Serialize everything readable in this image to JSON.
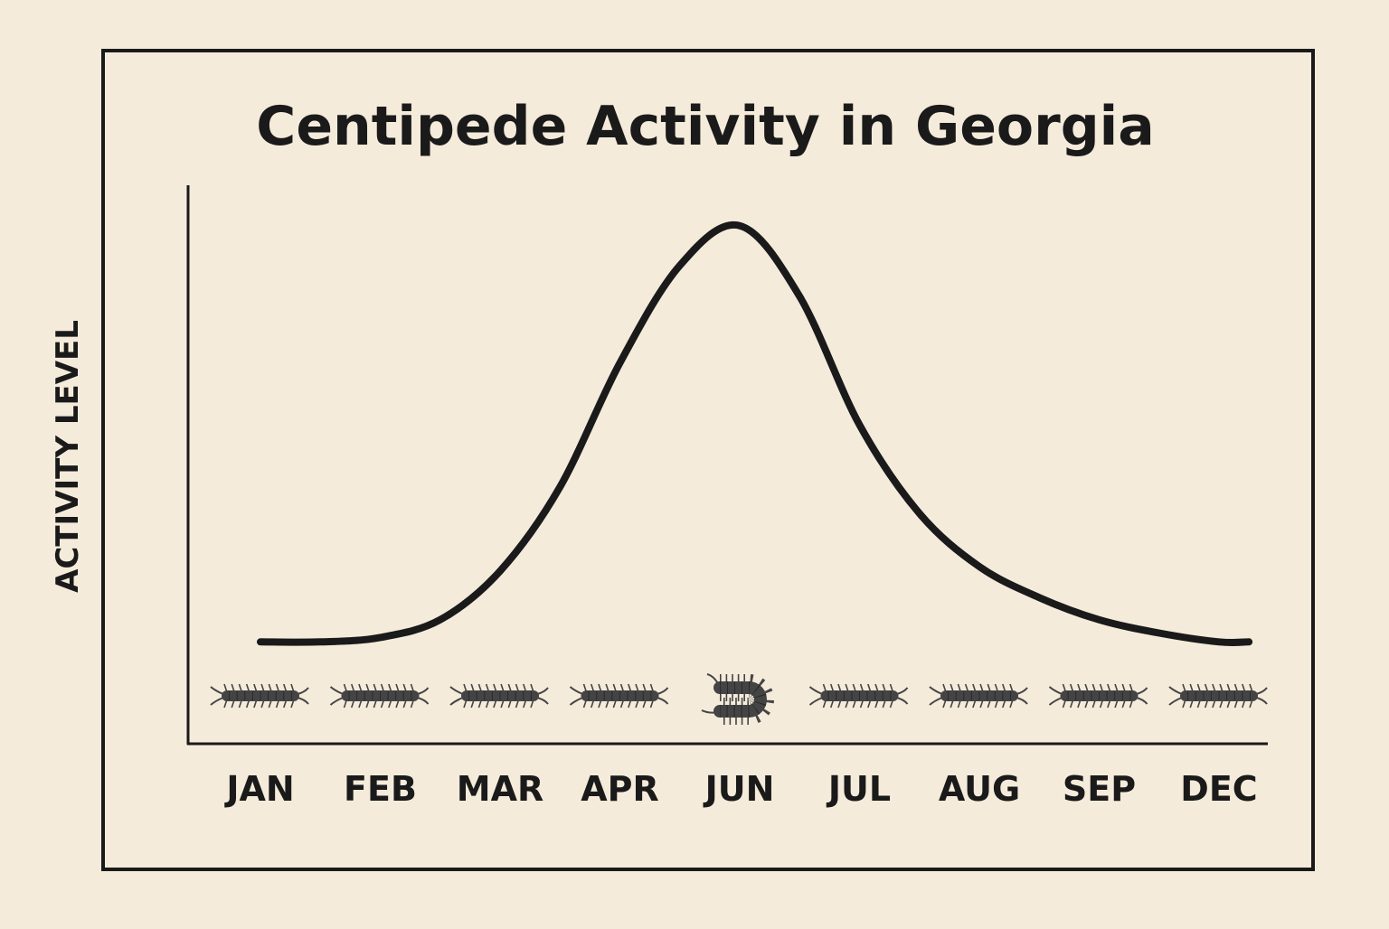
{
  "chart_data": {
    "type": "line",
    "title": "Centipede Activity in Georgia",
    "xlabel": "",
    "ylabel": "ACTIVITY LEVEL",
    "categories": [
      "JAN",
      "FEB",
      "MAR",
      "APR",
      "JUN",
      "JUL",
      "AUG",
      "SEP",
      "DEC"
    ],
    "curve": {
      "x": [
        0,
        0.5,
        1,
        1.5,
        2,
        2.5,
        3,
        3.5,
        4,
        4.5,
        5,
        5.5,
        6,
        6.5,
        7,
        7.5,
        8,
        8.25
      ],
      "y": [
        3,
        3,
        4,
        8,
        19,
        38,
        66,
        88,
        97,
        81,
        52,
        32,
        20,
        13,
        8,
        5,
        3,
        3
      ]
    },
    "ylim": [
      0,
      110
    ],
    "grid": false,
    "legend": "none",
    "icons": [
      "centipede-icon",
      "centipede-icon",
      "centipede-icon",
      "centipede-icon",
      "centipede-curled-icon",
      "centipede-icon",
      "centipede-icon",
      "centipede-icon",
      "centipede-icon"
    ],
    "colors": {
      "background": "#f5ebdb",
      "ink": "#1a1a1a",
      "centipede": "#444444"
    }
  }
}
